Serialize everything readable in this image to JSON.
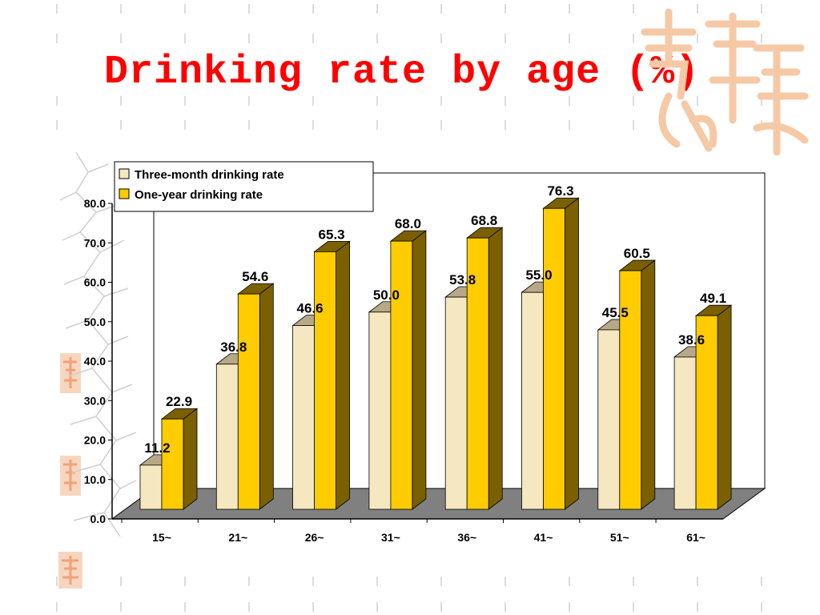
{
  "slide": {
    "title": "Drinking rate by age (%)"
  },
  "colors": {
    "title": "#ff0000",
    "three_month_front": "#f5e8c0",
    "three_month_side": "#b8a888",
    "one_year_front": "#ffcc00",
    "one_year_side": "#7a6000",
    "floor": "#808080",
    "watermark": "#f6c9a6"
  },
  "chart_data": {
    "type": "bar",
    "title": "",
    "xlabel": "",
    "ylabel": "",
    "categories": [
      "15~",
      "21~",
      "26~",
      "31~",
      "36~",
      "41~",
      "51~",
      "61~"
    ],
    "series": [
      {
        "name": "Three-month drinking rate",
        "values": [
          11.2,
          36.8,
          46.6,
          50.0,
          53.8,
          55.0,
          45.5,
          38.6
        ],
        "labels": [
          "11.2",
          "36.8",
          "46.6",
          "50.0",
          "53.8",
          "55.0",
          "45.5",
          "38.6"
        ]
      },
      {
        "name": "One-year drinking rate",
        "values": [
          22.9,
          54.6,
          65.3,
          68.0,
          68.8,
          76.3,
          60.5,
          49.1
        ],
        "labels": [
          "22.9",
          "54.6",
          "65.3",
          "68.0",
          "68.8",
          "76.3",
          "60.5",
          "49.1"
        ]
      }
    ],
    "ylim": [
      0,
      80
    ],
    "y_ticks": [
      "0.0",
      "10.0",
      "20.0",
      "30.0",
      "40.0",
      "50.0",
      "60.0",
      "70.0",
      "80.0"
    ],
    "style": "3d",
    "grid": false,
    "legend_position": "top-left"
  }
}
